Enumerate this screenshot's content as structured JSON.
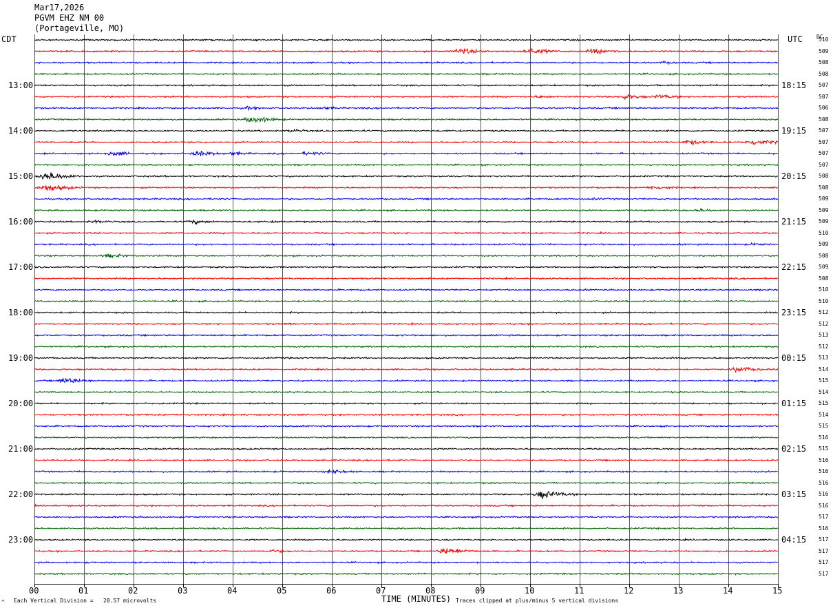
{
  "header": {
    "date": "Mar17,2026",
    "station": "PGVM EHZ NM 00",
    "location": "(Portageville, MO)"
  },
  "labels": {
    "left_tz": "CDT",
    "right_tz": "UTC",
    "dc_header": "DC",
    "corner_mark": "^",
    "scale_note": "Each Vertical Division =   28.57 microvolts",
    "xlabel": "TIME (MINUTES)",
    "clip_note": "Traces clipped at plus/minus 5 vertical divisions"
  },
  "colors": {
    "trace_cycle": [
      "#000000",
      "#ff0000",
      "#0000ff",
      "#006400"
    ],
    "grid": "#555555"
  },
  "chart_data": {
    "type": "line",
    "title": "PGVM EHZ NM 00",
    "xlabel": "TIME (MINUTES)",
    "xlim": [
      0,
      15
    ],
    "x_ticks": [
      "00",
      "01",
      "02",
      "03",
      "04",
      "05",
      "06",
      "07",
      "08",
      "09",
      "10",
      "11",
      "12",
      "13",
      "14",
      "15"
    ],
    "row_count": 48,
    "minutes_per_row": 15,
    "left_hour_labels": [
      "13:00",
      "14:00",
      "15:00",
      "16:00",
      "17:00",
      "18:00",
      "19:00",
      "20:00",
      "21:00",
      "22:00",
      "23:00"
    ],
    "right_time_labels": [
      "18:15",
      "19:15",
      "20:15",
      "21:15",
      "22:15",
      "23:15",
      "00:15",
      "01:15",
      "02:15",
      "03:15",
      "04:15"
    ],
    "dc_offsets": [
      "510",
      "509",
      "508",
      "508",
      "507",
      "507",
      "506",
      "508",
      "507",
      "507",
      "507",
      "507",
      "508",
      "508",
      "509",
      "509",
      "509",
      "510",
      "509",
      "508",
      "509",
      "508",
      "510",
      "510",
      "512",
      "512",
      "513",
      "512",
      "513",
      "514",
      "515",
      "514",
      "515",
      "514",
      "515",
      "516",
      "515",
      "516",
      "516",
      "516",
      "516",
      "516",
      "517",
      "516",
      "517",
      "517",
      "517",
      "517"
    ],
    "amplitude_divisions_clip": 5,
    "microvolts_per_division": 28.57,
    "events": [
      {
        "row": 1,
        "minute": 8.6,
        "amplitude": 0.65
      },
      {
        "row": 1,
        "minute": 10.0,
        "amplitude": 0.7
      },
      {
        "row": 1,
        "minute": 11.3,
        "amplitude": 0.6
      },
      {
        "row": 2,
        "minute": 12.7,
        "amplitude": 0.3
      },
      {
        "row": 5,
        "minute": 10.2,
        "amplitude": 0.3
      },
      {
        "row": 5,
        "minute": 11.9,
        "amplitude": 0.55
      },
      {
        "row": 5,
        "minute": 12.6,
        "amplitude": 0.5
      },
      {
        "row": 6,
        "minute": 4.3,
        "amplitude": 0.35
      },
      {
        "row": 6,
        "minute": 5.8,
        "amplitude": 0.35
      },
      {
        "row": 7,
        "minute": 4.4,
        "amplitude": 0.8
      },
      {
        "row": 8,
        "minute": 5.2,
        "amplitude": 0.35
      },
      {
        "row": 9,
        "minute": 13.2,
        "amplitude": 0.55
      },
      {
        "row": 9,
        "minute": 14.5,
        "amplitude": 0.7
      },
      {
        "row": 10,
        "minute": 1.6,
        "amplitude": 0.5
      },
      {
        "row": 10,
        "minute": 3.3,
        "amplitude": 0.6
      },
      {
        "row": 10,
        "minute": 4.0,
        "amplitude": 0.4
      },
      {
        "row": 10,
        "minute": 5.5,
        "amplitude": 0.45
      },
      {
        "row": 12,
        "minute": 0.25,
        "amplitude": 0.9
      },
      {
        "row": 13,
        "minute": 0.25,
        "amplitude": 0.8
      },
      {
        "row": 13,
        "minute": 12.5,
        "amplitude": 0.5
      },
      {
        "row": 14,
        "minute": 11.3,
        "amplitude": 0.25
      },
      {
        "row": 15,
        "minute": 13.4,
        "amplitude": 0.35
      },
      {
        "row": 16,
        "minute": 1.2,
        "amplitude": 0.35
      },
      {
        "row": 16,
        "minute": 3.2,
        "amplitude": 0.45
      },
      {
        "row": 16,
        "minute": 4.8,
        "amplitude": 0.25
      },
      {
        "row": 18,
        "minute": 14.5,
        "amplitude": 0.3
      },
      {
        "row": 19,
        "minute": 1.5,
        "amplitude": 0.45
      },
      {
        "row": 25,
        "minute": 5.1,
        "amplitude": 0.25
      },
      {
        "row": 29,
        "minute": 14.2,
        "amplitude": 0.6
      },
      {
        "row": 30,
        "minute": 0.6,
        "amplitude": 0.7
      },
      {
        "row": 38,
        "minute": 6.0,
        "amplitude": 0.45
      },
      {
        "row": 40,
        "minute": 10.25,
        "amplitude": 0.9
      },
      {
        "row": 45,
        "minute": 8.3,
        "amplitude": 0.75
      },
      {
        "row": 45,
        "minute": 4.8,
        "amplitude": 0.35
      }
    ]
  }
}
